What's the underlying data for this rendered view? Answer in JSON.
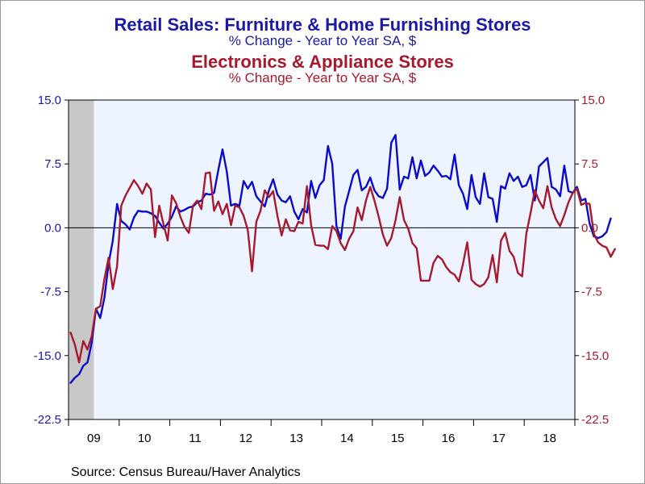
{
  "titles": {
    "series1_title": "Retail Sales: Furniture & Home Furnishing Stores",
    "series1_subtitle": "% Change - Year to Year    SA, $",
    "series2_title": "Electronics & Appliance Stores",
    "series2_subtitle": "% Change - Year to Year    SA, $"
  },
  "source": "Source:  Census Bureau/Haver Analytics",
  "colors": {
    "furniture": "#0a0ac8",
    "electronics": "#a6192e",
    "plot_bg": "#eef4ff",
    "recession": "#c8c8c8",
    "left_axis": "#1a1aa6",
    "right_axis": "#a6192e"
  },
  "chart_data": {
    "type": "line",
    "x_unit": "month",
    "x_start": "2009-01",
    "x_end": "2018-12",
    "ylim": [
      -22.5,
      15.0
    ],
    "yticks": [
      "15.0",
      "7.5",
      "0.0",
      "-7.5",
      "-15.0",
      "-22.5"
    ],
    "xtick_labels": [
      "09",
      "10",
      "11",
      "12",
      "13",
      "14",
      "15",
      "16",
      "17",
      "18"
    ],
    "recession_shading": [
      "2009-01",
      "2009-06"
    ],
    "zero_line": true,
    "series": [
      {
        "key": "furniture",
        "axis": "left",
        "values": [
          -18.2,
          -17.6,
          -17.2,
          -16.2,
          -15.8,
          -13.5,
          -9.5,
          -10.6,
          -8.2,
          -4.2,
          -1.5,
          2.8,
          0.8,
          0.4,
          -0.2,
          1.2,
          2.0,
          1.9,
          1.9,
          1.7,
          1.4,
          0.6,
          -0.1,
          0.5,
          1.3,
          2.5,
          1.9,
          2.1,
          2.4,
          2.5,
          3.0,
          3.2,
          4.0,
          3.9,
          4.1,
          6.8,
          9.2,
          6.6,
          2.6,
          2.8,
          2.6,
          5.5,
          4.6,
          5.4,
          3.7,
          3.1,
          2.5,
          4.4,
          5.7,
          3.9,
          3.2,
          3.0,
          3.7,
          1.9,
          1.0,
          2.2,
          1.8,
          5.5,
          3.5,
          5.0,
          5.6,
          9.6,
          7.5,
          0.2,
          -1.3,
          2.5,
          4.3,
          6.2,
          6.8,
          4.4,
          4.8,
          5.9,
          4.4,
          3.7,
          3.5,
          4.6,
          10.0,
          10.9,
          4.5,
          6.0,
          5.8,
          8.3,
          5.8,
          7.9,
          6.1,
          6.5,
          7.3,
          6.7,
          6.0,
          6.1,
          5.7,
          8.6,
          5.0,
          4.0,
          2.2,
          6.2,
          3.6,
          2.8,
          6.4,
          3.6,
          3.4,
          0.7,
          4.9,
          4.6,
          6.4,
          5.5,
          6.0,
          4.8,
          5.0,
          6.2,
          3.2,
          7.2,
          7.7,
          8.2,
          4.8,
          4.5,
          3.7,
          7.3,
          4.3,
          4.1,
          4.8,
          3.2,
          3.4,
          0.5,
          -1.0,
          -1.2,
          -1.0,
          -0.5,
          1.1
        ]
      },
      {
        "key": "electronics",
        "axis": "right",
        "values": [
          -12.3,
          -13.7,
          -15.8,
          -13.3,
          -14.3,
          -12.7,
          -9.5,
          -9.2,
          -6.0,
          -3.5,
          -7.2,
          -4.5,
          2.6,
          3.8,
          4.7,
          5.6,
          4.9,
          4.0,
          5.2,
          4.5,
          -1.1,
          2.6,
          0.4,
          -1.5,
          3.8,
          2.9,
          1.3,
          0.1,
          -0.6,
          2.6,
          3.2,
          2.2,
          6.4,
          6.5,
          2.0,
          3.1,
          1.6,
          2.8,
          0.3,
          2.6,
          2.4,
          1.4,
          -0.3,
          -5.1,
          0.7,
          2.0,
          4.4,
          3.6,
          4.3,
          1.4,
          -0.9,
          1.0,
          -0.3,
          -0.4,
          0.7,
          0.5,
          4.9,
          0.3,
          -2.0,
          -2.1,
          -2.1,
          -2.5,
          0.2,
          -0.4,
          -1.8,
          -2.6,
          -1.3,
          -0.4,
          2.4,
          0.9,
          3.2,
          4.8,
          3.2,
          1.3,
          -0.8,
          -2.1,
          -1.2,
          0.9,
          3.6,
          0.9,
          -0.1,
          -1.8,
          -2.4,
          -6.2,
          -6.2,
          -6.2,
          -4.1,
          -3.3,
          -3.7,
          -4.6,
          -5.2,
          -5.5,
          -6.3,
          -4.2,
          -1.7,
          -6.1,
          -6.6,
          -6.9,
          -6.6,
          -5.8,
          -3.2,
          -6.4,
          -1.5,
          -0.6,
          -2.7,
          -3.4,
          -5.3,
          -5.7,
          -0.7,
          1.7,
          4.4,
          3.2,
          2.3,
          4.9,
          2.4,
          1.0,
          0.2,
          1.5,
          3.0,
          4.1,
          4.6,
          2.7,
          2.9,
          2.8,
          -0.7,
          -1.7,
          -2.1,
          -2.3,
          -3.4,
          -2.5
        ]
      }
    ]
  }
}
